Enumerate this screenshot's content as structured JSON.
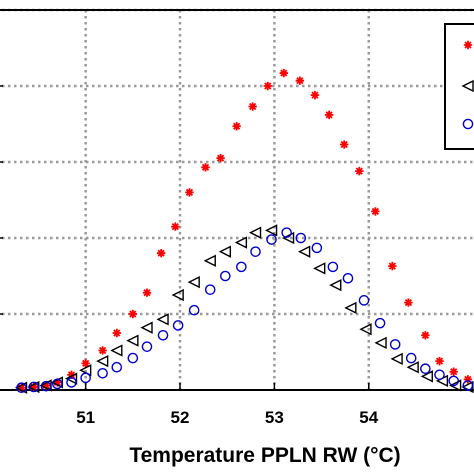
{
  "chart_data": {
    "type": "scatter",
    "title": "",
    "xlabel": "Temperature PPLN RW (°C)",
    "ylabel": "",
    "xlim": [
      50.05,
      55.2
    ],
    "ylim": [
      0,
      5
    ],
    "xticks": [
      51,
      52,
      53,
      54
    ],
    "xtick_labels": [
      "51",
      "52",
      "53",
      "54"
    ],
    "yticks": [
      1,
      2,
      3,
      4,
      5
    ],
    "grid": true,
    "legend": "top-right",
    "series": [
      {
        "marker": "star",
        "color": "#ff0000",
        "x": [
          50.32,
          50.45,
          50.58,
          50.7,
          50.85,
          51.0,
          51.18,
          51.33,
          51.5,
          51.65,
          51.8,
          51.95,
          52.1,
          52.27,
          52.43,
          52.6,
          52.77,
          52.93,
          53.1,
          53.27,
          53.43,
          53.58,
          53.74,
          53.9,
          54.07,
          54.25,
          54.42,
          54.6,
          54.75,
          54.9,
          55.05
        ],
        "y": [
          0.03,
          0.04,
          0.06,
          0.1,
          0.2,
          0.35,
          0.52,
          0.75,
          1.0,
          1.28,
          1.8,
          2.15,
          2.6,
          2.93,
          3.05,
          3.47,
          3.73,
          4.0,
          4.17,
          4.07,
          3.88,
          3.62,
          3.23,
          2.88,
          2.35,
          1.63,
          1.15,
          0.72,
          0.38,
          0.24,
          0.14
        ]
      },
      {
        "marker": "triangle-left",
        "color": "#000000",
        "x": [
          50.32,
          50.45,
          50.58,
          50.7,
          50.85,
          51.0,
          51.18,
          51.33,
          51.5,
          51.65,
          51.82,
          51.98,
          52.15,
          52.32,
          52.48,
          52.65,
          52.8,
          52.97,
          53.15,
          53.32,
          53.48,
          53.65,
          53.81,
          53.97,
          54.13,
          54.3,
          54.47,
          54.62,
          54.78,
          54.92,
          55.05
        ],
        "y": [
          0.03,
          0.04,
          0.06,
          0.1,
          0.15,
          0.26,
          0.38,
          0.52,
          0.65,
          0.82,
          0.93,
          1.25,
          1.42,
          1.7,
          1.82,
          1.94,
          2.07,
          2.1,
          2.0,
          1.82,
          1.6,
          1.38,
          1.08,
          0.8,
          0.62,
          0.41,
          0.3,
          0.18,
          0.12,
          0.06,
          0.04
        ]
      },
      {
        "marker": "circle",
        "color": "#0000cc",
        "x": [
          50.32,
          50.45,
          50.58,
          50.7,
          50.85,
          51.0,
          51.18,
          51.33,
          51.5,
          51.65,
          51.82,
          51.98,
          52.15,
          52.32,
          52.48,
          52.65,
          52.8,
          52.97,
          53.13,
          53.28,
          53.45,
          53.62,
          53.78,
          53.95,
          54.12,
          54.28,
          54.45,
          54.6,
          54.75,
          54.9,
          55.05
        ],
        "y": [
          0.03,
          0.04,
          0.05,
          0.08,
          0.1,
          0.16,
          0.22,
          0.3,
          0.42,
          0.57,
          0.72,
          0.85,
          1.05,
          1.32,
          1.5,
          1.62,
          1.82,
          1.98,
          2.07,
          2.0,
          1.87,
          1.62,
          1.47,
          1.18,
          0.88,
          0.6,
          0.42,
          0.28,
          0.2,
          0.12,
          0.06
        ]
      }
    ]
  }
}
